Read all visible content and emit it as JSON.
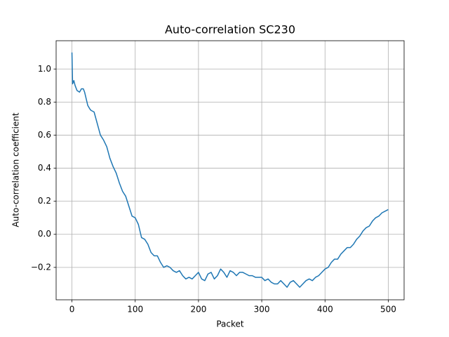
{
  "chart_data": {
    "type": "line",
    "title": "Auto-correlation SC230",
    "x_label": "Packet",
    "y_label": "Auto-correlation coefficient",
    "color": "#1f77b4",
    "grid": true,
    "x": [
      0,
      1,
      3,
      5,
      8,
      12,
      15,
      18,
      20,
      25,
      28,
      30,
      35,
      40,
      45,
      50,
      55,
      60,
      65,
      70,
      75,
      80,
      85,
      90,
      95,
      100,
      105,
      110,
      115,
      120,
      125,
      130,
      135,
      140,
      145,
      150,
      155,
      160,
      165,
      170,
      175,
      180,
      185,
      190,
      195,
      200,
      205,
      210,
      215,
      220,
      225,
      230,
      235,
      240,
      245,
      250,
      255,
      260,
      265,
      270,
      275,
      280,
      285,
      290,
      295,
      300,
      305,
      310,
      315,
      320,
      325,
      330,
      335,
      340,
      345,
      350,
      355,
      360,
      365,
      370,
      375,
      380,
      385,
      390,
      395,
      400,
      405,
      410,
      415,
      420,
      425,
      430,
      435,
      440,
      445,
      450,
      455,
      460,
      465,
      470,
      475,
      480,
      485,
      490,
      495,
      500
    ],
    "values": [
      1.1,
      0.91,
      0.93,
      0.9,
      0.87,
      0.86,
      0.88,
      0.88,
      0.86,
      0.78,
      0.76,
      0.75,
      0.74,
      0.67,
      0.6,
      0.57,
      0.53,
      0.46,
      0.41,
      0.37,
      0.31,
      0.26,
      0.23,
      0.17,
      0.11,
      0.1,
      0.06,
      -0.02,
      -0.03,
      -0.06,
      -0.11,
      -0.13,
      -0.13,
      -0.17,
      -0.2,
      -0.19,
      -0.2,
      -0.22,
      -0.23,
      -0.22,
      -0.25,
      -0.27,
      -0.26,
      -0.27,
      -0.25,
      -0.23,
      -0.27,
      -0.28,
      -0.24,
      -0.23,
      -0.27,
      -0.25,
      -0.21,
      -0.23,
      -0.26,
      -0.22,
      -0.23,
      -0.25,
      -0.23,
      -0.23,
      -0.24,
      -0.25,
      -0.25,
      -0.26,
      -0.26,
      -0.26,
      -0.28,
      -0.27,
      -0.29,
      -0.3,
      -0.3,
      -0.28,
      -0.3,
      -0.32,
      -0.29,
      -0.28,
      -0.3,
      -0.32,
      -0.3,
      -0.28,
      -0.27,
      -0.28,
      -0.26,
      -0.25,
      -0.23,
      -0.21,
      -0.2,
      -0.17,
      -0.15,
      -0.15,
      -0.12,
      -0.1,
      -0.08,
      -0.08,
      -0.06,
      -0.03,
      -0.01,
      0.02,
      0.04,
      0.05,
      0.08,
      0.1,
      0.11,
      0.13,
      0.14,
      0.15
    ],
    "xlim": [
      -25,
      525
    ],
    "xticks": [
      0,
      100,
      200,
      300,
      400,
      500
    ],
    "ylim": [
      -0.396,
      1.171
    ],
    "yticks": [
      {
        "value": -0.2,
        "label": "−0.2"
      },
      {
        "value": 0,
        "label": "0.0"
      },
      0.2,
      0.4,
      0.6,
      0.8,
      {
        "value": 1,
        "label": "1.0"
      }
    ]
  }
}
